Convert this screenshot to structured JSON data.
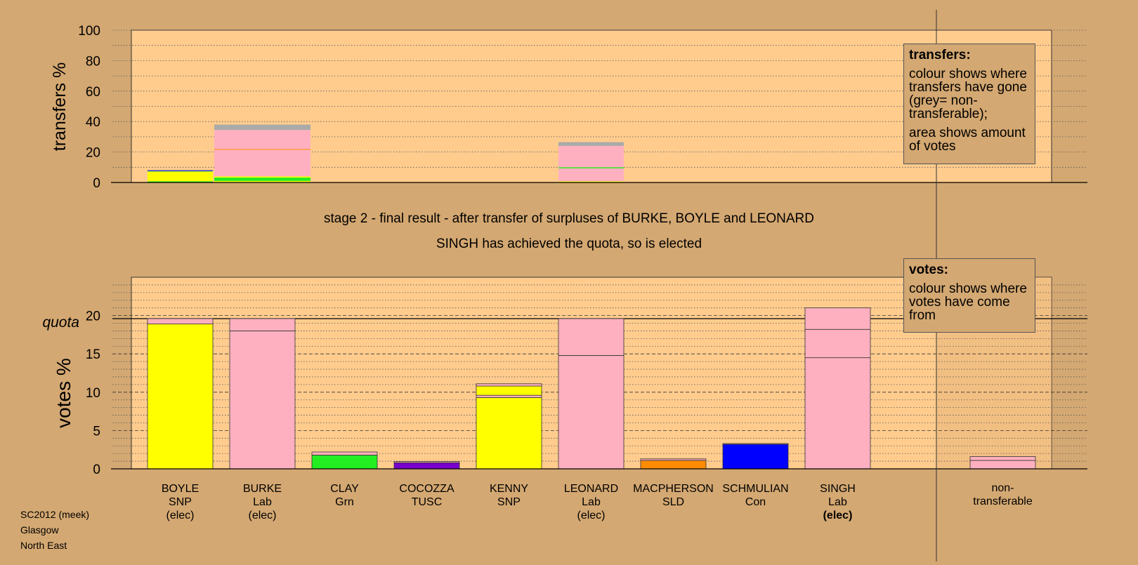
{
  "chart_data": [
    {
      "type": "bar",
      "stacked": true,
      "ylabel": "transfers %",
      "ylim": [
        0,
        100
      ],
      "yticks": [
        0,
        20,
        40,
        60,
        80,
        100
      ],
      "grid": true,
      "segments": [
        {
          "category": "BOYLE",
          "stack": [
            {
              "value": 0.8,
              "color": "#22ee22"
            },
            {
              "value": 6.4,
              "color": "#ffff00"
            },
            {
              "value": 0.3,
              "color": "#22ee22"
            },
            {
              "value": 0.5,
              "color": "#0000ff"
            }
          ]
        },
        {
          "category": "BURKE",
          "stack": [
            {
              "value": 1.0,
              "color": "#ffff00"
            },
            {
              "value": 2.2,
              "color": "#22ee22"
            },
            {
              "value": 0.8,
              "color": "#ffff00"
            },
            {
              "value": 17.5,
              "color": "#ffb0c0"
            },
            {
              "value": 0.5,
              "color": "#ff8c00"
            },
            {
              "value": 12.5,
              "color": "#ffb0c0"
            },
            {
              "value": 3.5,
              "color": "#aaaaaa"
            }
          ]
        },
        {
          "category": "LEONARD",
          "stack": [
            {
              "value": 0.8,
              "color": "#ffff00"
            },
            {
              "value": 8.5,
              "color": "#ffb0c0"
            },
            {
              "value": 0.7,
              "color": "#22ee22"
            },
            {
              "value": 14.0,
              "color": "#ffb0c0"
            },
            {
              "value": 2.5,
              "color": "#aaaaaa"
            }
          ]
        }
      ],
      "legend": {
        "title": "transfers:",
        "paragraphs": [
          "colour shows where transfers have gone (grey= non-transferable);",
          "area shows amount of votes"
        ]
      }
    },
    {
      "type": "bar",
      "stacked": true,
      "ylabel": "votes %",
      "ylim": [
        0,
        25
      ],
      "yticks": [
        0,
        5,
        10,
        15,
        20
      ],
      "quota_label": "quota",
      "quota": 19.6,
      "categories": [
        {
          "name": "BOYLE",
          "party": "SNP",
          "status": "(elec)",
          "status_bold": false,
          "stack": [
            {
              "value": 18.9,
              "color": "#ffff00"
            },
            {
              "value": 0.7,
              "color": "#ffb0c0"
            }
          ]
        },
        {
          "name": "BURKE",
          "party": "Lab",
          "status": "(elec)",
          "status_bold": false,
          "stack": [
            {
              "value": 18.0,
              "color": "#ffb0c0"
            },
            {
              "value": 1.6,
              "color": "#ffb0c0"
            }
          ]
        },
        {
          "name": "CLAY",
          "party": "Grn",
          "status": "",
          "status_bold": false,
          "stack": [
            {
              "value": 1.8,
              "color": "#22ee22"
            },
            {
              "value": 0.4,
              "color": "#ffb0c0"
            }
          ]
        },
        {
          "name": "COCOZZA",
          "party": "TUSC",
          "status": "",
          "status_bold": false,
          "stack": [
            {
              "value": 0.8,
              "color": "#7700cc"
            },
            {
              "value": 0.15,
              "color": "#ffb0c0"
            }
          ]
        },
        {
          "name": "KENNY",
          "party": "SNP",
          "status": "",
          "status_bold": false,
          "stack": [
            {
              "value": 9.3,
              "color": "#ffff00"
            },
            {
              "value": 0.3,
              "color": "#ffb0c0"
            },
            {
              "value": 1.2,
              "color": "#ffff00"
            },
            {
              "value": 0.3,
              "color": "#ffb0c0"
            }
          ]
        },
        {
          "name": "LEONARD",
          "party": "Lab",
          "status": "(elec)",
          "status_bold": false,
          "stack": [
            {
              "value": 14.8,
              "color": "#ffb0c0"
            },
            {
              "value": 4.8,
              "color": "#ffb0c0"
            }
          ]
        },
        {
          "name": "MACPHERSON",
          "party": "SLD",
          "status": "",
          "status_bold": false,
          "stack": [
            {
              "value": 1.1,
              "color": "#ff8c00"
            },
            {
              "value": 0.2,
              "color": "#ffb0c0"
            }
          ]
        },
        {
          "name": "SCHMULIAN",
          "party": "Con",
          "status": "",
          "status_bold": false,
          "stack": [
            {
              "value": 3.2,
              "color": "#0000ff"
            },
            {
              "value": 0.1,
              "color": "#ffb0c0"
            }
          ]
        },
        {
          "name": "SINGH",
          "party": "Lab",
          "status": "(elec)",
          "status_bold": true,
          "stack": [
            {
              "value": 14.5,
              "color": "#ffb0c0"
            },
            {
              "value": 3.7,
              "color": "#ffb0c0"
            },
            {
              "value": 2.8,
              "color": "#ffb0c0"
            }
          ]
        }
      ],
      "nontransferable": {
        "label_line1": "non-",
        "label_line2": "transferable",
        "stack": [
          {
            "value": 1.1,
            "color": "#ffb0c0"
          },
          {
            "value": 0.5,
            "color": "#ffb0c0"
          }
        ]
      },
      "legend": {
        "title": "votes:",
        "paragraphs": [
          "colour shows where votes have come from"
        ]
      }
    }
  ],
  "info": {
    "stage_line": "stage 2 - final result - after transfer of surpluses of BURKE, BOYLE and LEONARD",
    "elected_line": "SINGH has achieved the quota, so is elected"
  },
  "footer": {
    "line1": "SC2012 (meek)",
    "line2": "Glasgow",
    "line3": "North East"
  },
  "colors": {
    "background": "#d4a872",
    "plot_background": "#ffcc8e",
    "shaded_column": "#e8b47a"
  }
}
